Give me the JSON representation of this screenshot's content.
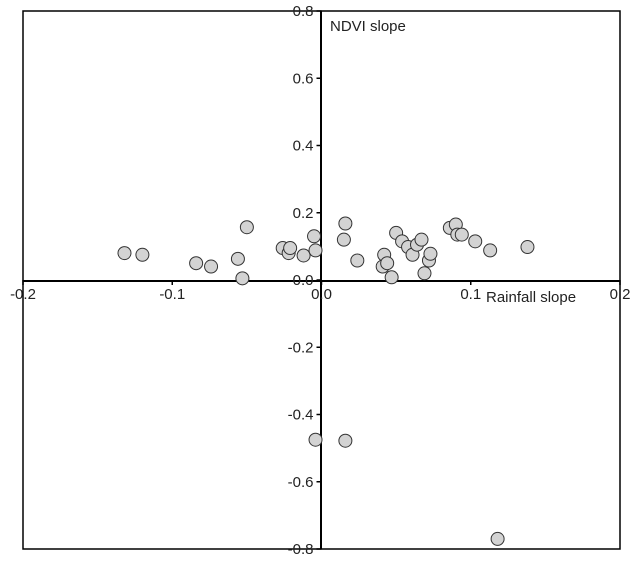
{
  "chart_data": {
    "type": "scatter",
    "xlabel": "Rainfall slope",
    "ylabel": "NDVI slope",
    "xlim": [
      -0.2,
      0.2
    ],
    "ylim": [
      -0.8,
      0.8
    ],
    "x_ticks": [
      "-0.2",
      "-0.1",
      "0.0",
      "0.1",
      "0.2"
    ],
    "y_ticks": [
      "0.8",
      "0.6",
      "0.4",
      "0.2",
      "0.0",
      "-0.2",
      "-0.4",
      "-0.6",
      "-0.8"
    ],
    "x_tick_values": [
      -0.2,
      -0.1,
      0.0,
      0.1,
      0.2
    ],
    "y_tick_values": [
      0.8,
      0.6,
      0.4,
      0.2,
      0.0,
      -0.2,
      -0.4,
      -0.6,
      -0.8
    ],
    "grid": false,
    "marker_fill": "#d3d3d3",
    "marker_stroke": "#333333",
    "points": [
      {
        "x": -0.132,
        "y": 0.08
      },
      {
        "x": -0.12,
        "y": 0.075
      },
      {
        "x": -0.084,
        "y": 0.05
      },
      {
        "x": -0.074,
        "y": 0.04
      },
      {
        "x": -0.056,
        "y": 0.063
      },
      {
        "x": -0.053,
        "y": 0.005
      },
      {
        "x": -0.05,
        "y": 0.157
      },
      {
        "x": -0.026,
        "y": 0.095
      },
      {
        "x": -0.022,
        "y": 0.08
      },
      {
        "x": -0.021,
        "y": 0.095
      },
      {
        "x": -0.012,
        "y": 0.073
      },
      {
        "x": -0.004,
        "y": 0.088
      },
      {
        "x": -0.005,
        "y": 0.13
      },
      {
        "x": 0.015,
        "y": 0.12
      },
      {
        "x": 0.016,
        "y": 0.168
      },
      {
        "x": 0.024,
        "y": 0.058
      },
      {
        "x": 0.041,
        "y": 0.04
      },
      {
        "x": 0.042,
        "y": 0.075
      },
      {
        "x": 0.044,
        "y": 0.05
      },
      {
        "x": 0.047,
        "y": 0.008
      },
      {
        "x": 0.05,
        "y": 0.14
      },
      {
        "x": 0.054,
        "y": 0.115
      },
      {
        "x": 0.058,
        "y": 0.098
      },
      {
        "x": 0.061,
        "y": 0.075
      },
      {
        "x": 0.064,
        "y": 0.105
      },
      {
        "x": 0.067,
        "y": 0.12
      },
      {
        "x": 0.069,
        "y": 0.02
      },
      {
        "x": 0.072,
        "y": 0.058
      },
      {
        "x": 0.073,
        "y": 0.078
      },
      {
        "x": 0.086,
        "y": 0.155
      },
      {
        "x": 0.09,
        "y": 0.165
      },
      {
        "x": 0.091,
        "y": 0.135
      },
      {
        "x": 0.094,
        "y": 0.135
      },
      {
        "x": 0.103,
        "y": 0.115
      },
      {
        "x": 0.113,
        "y": 0.088
      },
      {
        "x": 0.138,
        "y": 0.098
      },
      {
        "x": -0.004,
        "y": -0.475
      },
      {
        "x": 0.016,
        "y": -0.478
      },
      {
        "x": 0.118,
        "y": -0.77
      }
    ]
  }
}
